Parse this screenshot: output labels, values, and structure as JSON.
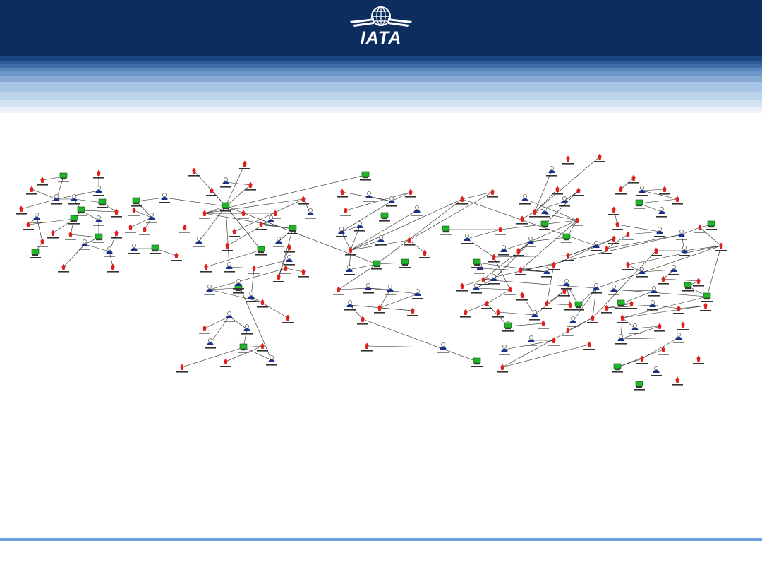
{
  "header": {
    "logo_text": "IATA",
    "logo_icon": "globe-with-wings-icon",
    "colors": {
      "navy": "#0d2d5e",
      "mid_blue": "#4f7fb8",
      "light_blue": "#a9c6e6",
      "footer_line": "#6e9fe0"
    }
  },
  "network": {
    "icons": {
      "person": "person-icon",
      "computer": "computer-icon",
      "alert": "alert-marker-icon"
    },
    "colors": {
      "person": "#1a2f8a",
      "computer": "#21b52a",
      "alert": "#e0201c",
      "edge": "#222222"
    }
  }
}
